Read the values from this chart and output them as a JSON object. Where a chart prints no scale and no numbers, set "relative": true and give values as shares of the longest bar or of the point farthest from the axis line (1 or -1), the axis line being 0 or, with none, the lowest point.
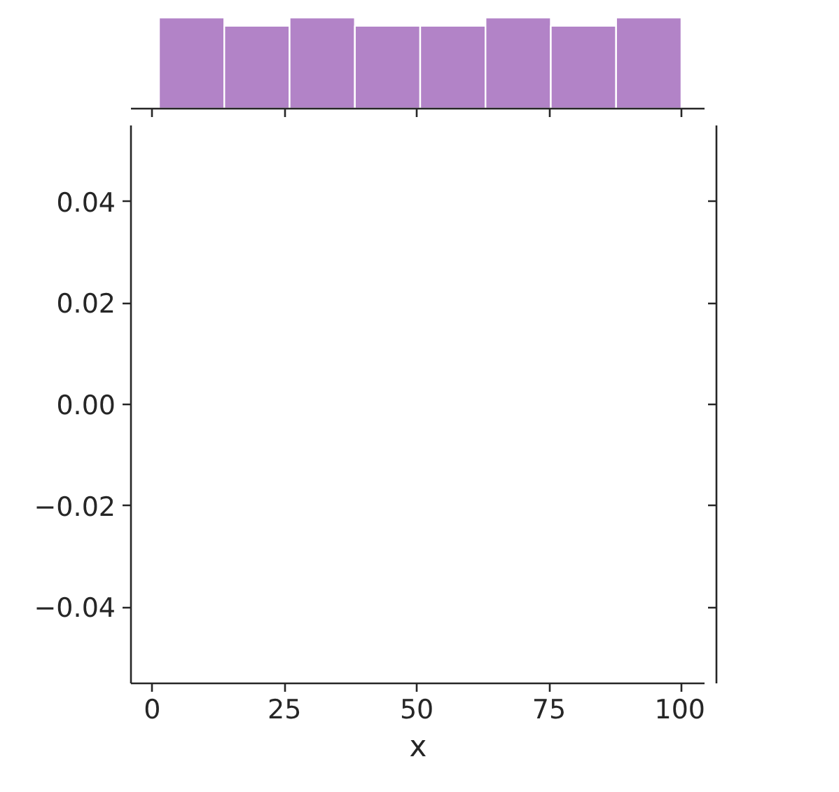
{
  "chart_data": [
    {
      "type": "bar",
      "relative": true,
      "categories": [
        null,
        null,
        null,
        null,
        null,
        null,
        null,
        null
      ],
      "values": [
        1,
        0.91,
        1,
        0.91,
        0.91,
        1,
        0.91,
        1
      ],
      "color": "#b283c7"
    },
    {
      "type": "scatter",
      "xlim": [
        -4,
        104.5
      ],
      "ylim": [
        -0.055,
        0.055
      ],
      "xticks": [
        0,
        25,
        50,
        75,
        100
      ],
      "yticks": [
        {
          "value": -0.04,
          "label": "−0.04"
        },
        {
          "value": -0.02,
          "label": "−0.02"
        },
        {
          "value": 0.0,
          "label": "0.00"
        },
        {
          "value": 0.02,
          "label": "0.02"
        },
        {
          "value": 0.04,
          "label": "0.04"
        }
      ],
      "xlabel": "x"
    }
  ]
}
